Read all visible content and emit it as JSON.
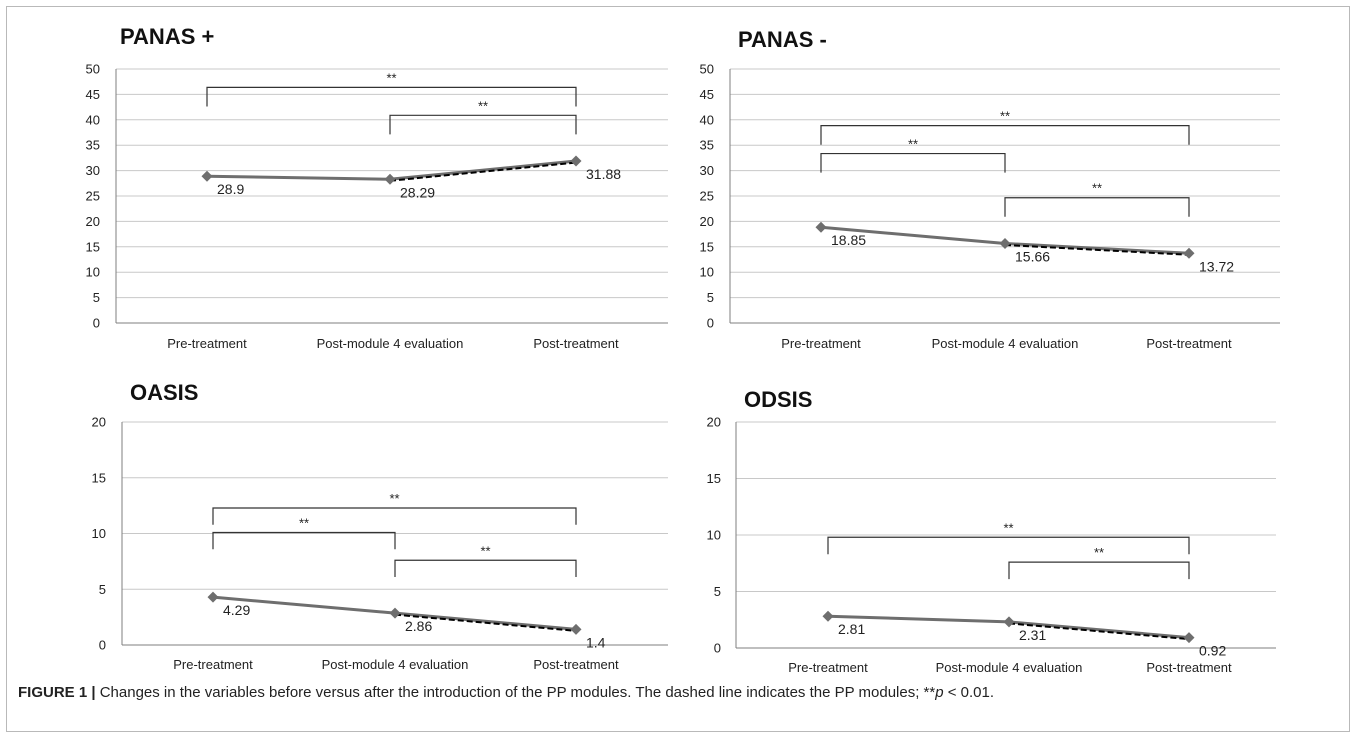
{
  "chart_data": [
    {
      "type": "line",
      "title": "PANAS +",
      "categories": [
        "Pre-treatment",
        "Post-module 4 evaluation",
        "Post-treatment"
      ],
      "values": [
        28.9,
        28.29,
        31.88
      ],
      "value_labels": [
        "28.9",
        "28.29",
        "31.88"
      ],
      "ylim": [
        0,
        50
      ],
      "yticks": [
        0,
        5,
        10,
        15,
        20,
        25,
        30,
        35,
        40,
        45,
        50
      ],
      "grid": true,
      "dashed_segment": [
        1,
        2
      ],
      "significance": [
        {
          "from": 0,
          "to": 2,
          "label": "**"
        },
        {
          "from": 1,
          "to": 2,
          "label": "**"
        }
      ]
    },
    {
      "type": "line",
      "title": "PANAS -",
      "categories": [
        "Pre-treatment",
        "Post-module 4 evaluation",
        "Post-treatment"
      ],
      "values": [
        18.85,
        15.66,
        13.72
      ],
      "value_labels": [
        "18.85",
        "15.66",
        "13.72"
      ],
      "ylim": [
        0,
        50
      ],
      "yticks": [
        0,
        5,
        10,
        15,
        20,
        25,
        30,
        35,
        40,
        45,
        50
      ],
      "grid": true,
      "dashed_segment": [
        1,
        2
      ],
      "significance": [
        {
          "from": 0,
          "to": 2,
          "label": "**"
        },
        {
          "from": 0,
          "to": 1,
          "label": "**"
        },
        {
          "from": 1,
          "to": 2,
          "label": "**"
        }
      ]
    },
    {
      "type": "line",
      "title": "OASIS",
      "categories": [
        "Pre-treatment",
        "Post-module 4 evaluation",
        "Post-treatment"
      ],
      "values": [
        4.29,
        2.86,
        1.4
      ],
      "value_labels": [
        "4.29",
        "2.86",
        "1.4"
      ],
      "ylim": [
        0,
        20
      ],
      "yticks": [
        0,
        5,
        10,
        15,
        20
      ],
      "grid": true,
      "dashed_segment": [
        1,
        2
      ],
      "significance": [
        {
          "from": 0,
          "to": 2,
          "label": "**"
        },
        {
          "from": 0,
          "to": 1,
          "label": "**"
        },
        {
          "from": 1,
          "to": 2,
          "label": "**"
        }
      ]
    },
    {
      "type": "line",
      "title": "ODSIS",
      "categories": [
        "Pre-treatment",
        "Post-module 4 evaluation",
        "Post-treatment"
      ],
      "values": [
        2.81,
        2.31,
        0.92
      ],
      "value_labels": [
        "2.81",
        "2.31",
        "0.92"
      ],
      "ylim": [
        0,
        20
      ],
      "yticks": [
        0,
        5,
        10,
        15,
        20
      ],
      "grid": true,
      "dashed_segment": [
        1,
        2
      ],
      "significance": [
        {
          "from": 0,
          "to": 2,
          "label": "**"
        },
        {
          "from": 1,
          "to": 2,
          "label": "**"
        }
      ]
    }
  ],
  "caption": {
    "lead": "FIGURE 1 |",
    "text": " Changes in the variables before versus after the introduction of the PP modules. The dashed line indicates the PP modules; **",
    "p_symbol": "p",
    "tail": " < 0.01."
  },
  "colors": {
    "line": "#6e6e6e",
    "dashed": "#000000",
    "marker": "#6e6e6e",
    "grid": "#c8c8c8",
    "axis": "#7f7f7f"
  }
}
